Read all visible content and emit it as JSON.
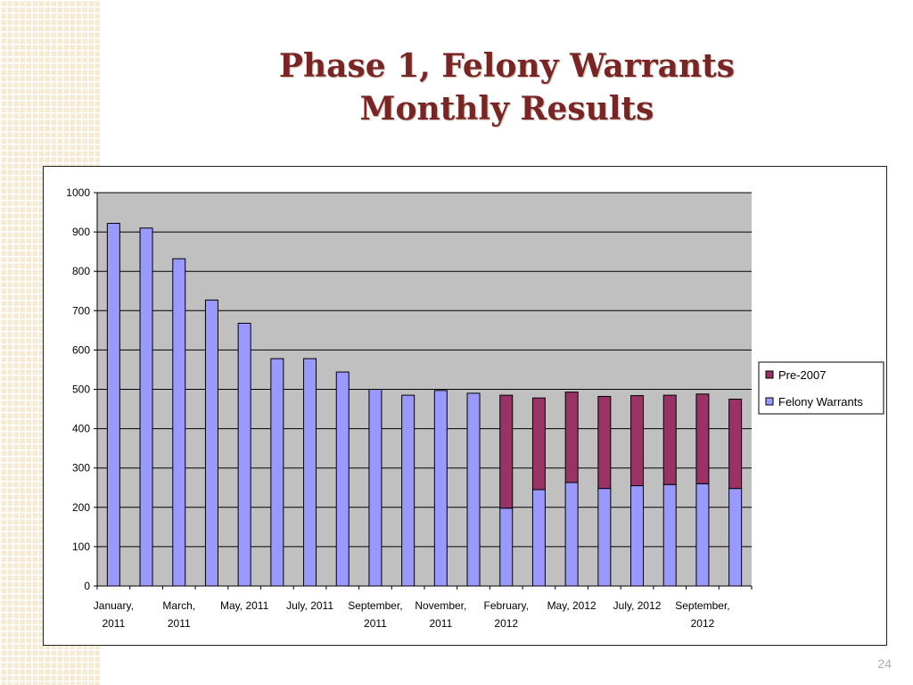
{
  "slide": {
    "title_line1": "Phase 1, Felony Warrants",
    "title_line2": "Monthly Results",
    "page_number": "24"
  },
  "colors": {
    "plot_background": "#c0c0c0",
    "felony_fill": "#9999ff",
    "pre2007_fill": "#993366",
    "title": "#7a2525"
  },
  "chart_data": {
    "type": "bar",
    "stacked": true,
    "title": "",
    "xlabel": "",
    "ylabel": "",
    "ylim": [
      0,
      1000
    ],
    "y_ticks": [
      0,
      100,
      200,
      300,
      400,
      500,
      600,
      700,
      800,
      900,
      1000
    ],
    "grid": true,
    "legend_position": "right",
    "x_tick_labels": [
      {
        "index": 0,
        "lines": [
          "January,",
          "2011"
        ]
      },
      {
        "index": 2,
        "lines": [
          "March,",
          "2011"
        ]
      },
      {
        "index": 4,
        "lines": [
          "May, 2011"
        ]
      },
      {
        "index": 6,
        "lines": [
          "July, 2011"
        ]
      },
      {
        "index": 8,
        "lines": [
          "September,",
          "2011"
        ]
      },
      {
        "index": 10,
        "lines": [
          "November,",
          "2011"
        ]
      },
      {
        "index": 12,
        "lines": [
          "February,",
          "2012"
        ]
      },
      {
        "index": 14,
        "lines": [
          "May, 2012"
        ]
      },
      {
        "index": 16,
        "lines": [
          "July, 2012"
        ]
      },
      {
        "index": 18,
        "lines": [
          "September,",
          "2012"
        ]
      }
    ],
    "series": [
      {
        "name": "Felony Warrants",
        "color": "#9999ff",
        "values": [
          922,
          910,
          832,
          727,
          668,
          578,
          578,
          544,
          500,
          485,
          497,
          490,
          198,
          245,
          263,
          248,
          255,
          258,
          260,
          248
        ]
      },
      {
        "name": "Pre-2007",
        "color": "#993366",
        "values": [
          0,
          0,
          0,
          0,
          0,
          0,
          0,
          0,
          0,
          0,
          0,
          0,
          287,
          233,
          230,
          234,
          229,
          227,
          228,
          227
        ]
      }
    ],
    "legend_order": [
      "Pre-2007",
      "Felony Warrants"
    ]
  }
}
